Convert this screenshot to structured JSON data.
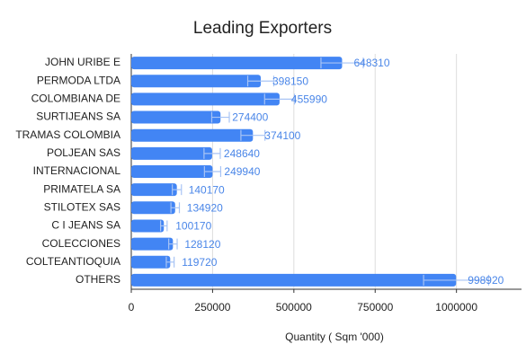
{
  "chart_data": {
    "type": "hbar",
    "title": "Leading Exporters",
    "x_label": "Quantity ( Sqm '000)",
    "categories": [
      "JOHN URIBE E",
      "PERMODA LTDA",
      "COLOMBIANA DE",
      "SURTIJEANS SA",
      "TRAMAS COLOMBIA",
      "POLJEAN SAS",
      "INTERNACIONAL",
      "PRIMATELA SA",
      "STILOTEX SAS",
      "C I JEANS SA",
      "COLECCIONES",
      "COLTEANTIOQUIA",
      "OTHERS"
    ],
    "values": [
      648310,
      398150,
      455990,
      274400,
      374100,
      248640,
      249940,
      140170,
      134920,
      100170,
      128120,
      119720,
      998920
    ],
    "errors": [
      65000,
      40000,
      46000,
      27000,
      37000,
      25000,
      25000,
      14000,
      13000,
      10000,
      13000,
      12000,
      100000
    ],
    "color": "#4285f4",
    "error_color": "#a8c4f5",
    "xlim": [
      0,
      1200000
    ],
    "xticks": [
      0,
      250000,
      500000,
      750000,
      1000000
    ],
    "grid": true
  }
}
